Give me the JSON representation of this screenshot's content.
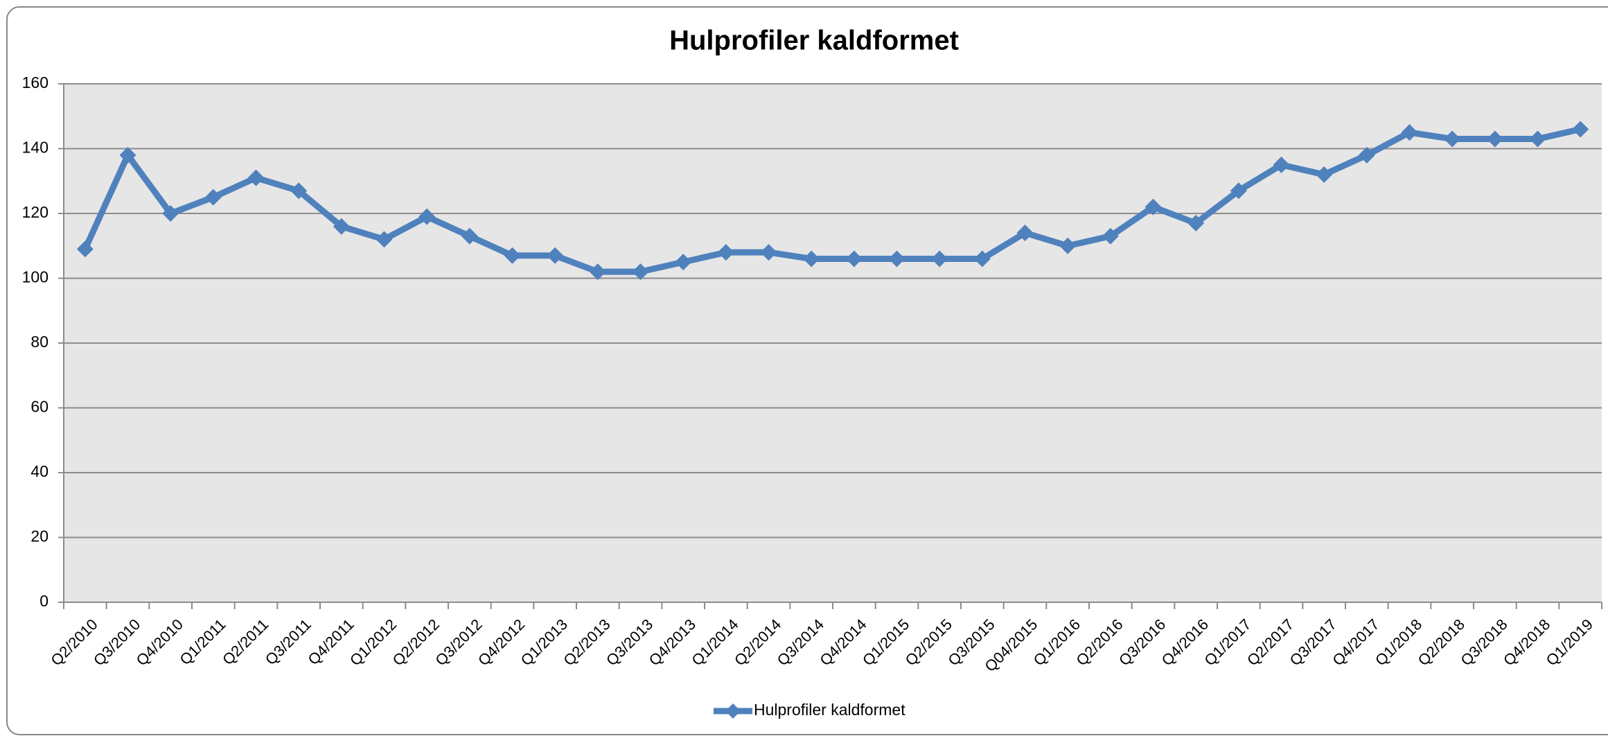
{
  "chart_data": {
    "type": "line",
    "title": "Hulprofiler kaldformet",
    "categories": [
      "Q2/2010",
      "Q3/2010",
      "Q4/2010",
      "Q1/2011",
      "Q2/2011",
      "Q3/2011",
      "Q4/2011",
      "Q1/2012",
      "Q2/2012",
      "Q3/2012",
      "Q4/2012",
      "Q1/2013",
      "Q2/2013",
      "Q3/2013",
      "Q4/2013",
      "Q1/2014",
      "Q2/2014",
      "Q3/2014",
      "Q4/2014",
      "Q1/2015",
      "Q2/2015",
      "Q3/2015",
      "Q04/2015",
      "Q1/2016",
      "Q2/2016",
      "Q3/2016",
      "Q4/2016",
      "Q1/2017",
      "Q2/2017",
      "Q3/2017",
      "Q4/2017",
      "Q1/2018",
      "Q2/2018",
      "Q3/2018",
      "Q4/2018",
      "Q1/2019"
    ],
    "series": [
      {
        "name": "Hulprofiler kaldformet",
        "color": "#4f81bd",
        "values": [
          109,
          138,
          120,
          125,
          131,
          127,
          116,
          112,
          119,
          113,
          107,
          107,
          102,
          102,
          105,
          108,
          108,
          106,
          106,
          106,
          106,
          106,
          114,
          110,
          113,
          122,
          117,
          127,
          135,
          132,
          138,
          145,
          143,
          143,
          143,
          146
        ]
      }
    ],
    "ylim": [
      0,
      160
    ],
    "yticks": [
      0,
      20,
      40,
      60,
      80,
      100,
      120,
      140,
      160
    ],
    "grid": true,
    "legend": "bottom"
  }
}
